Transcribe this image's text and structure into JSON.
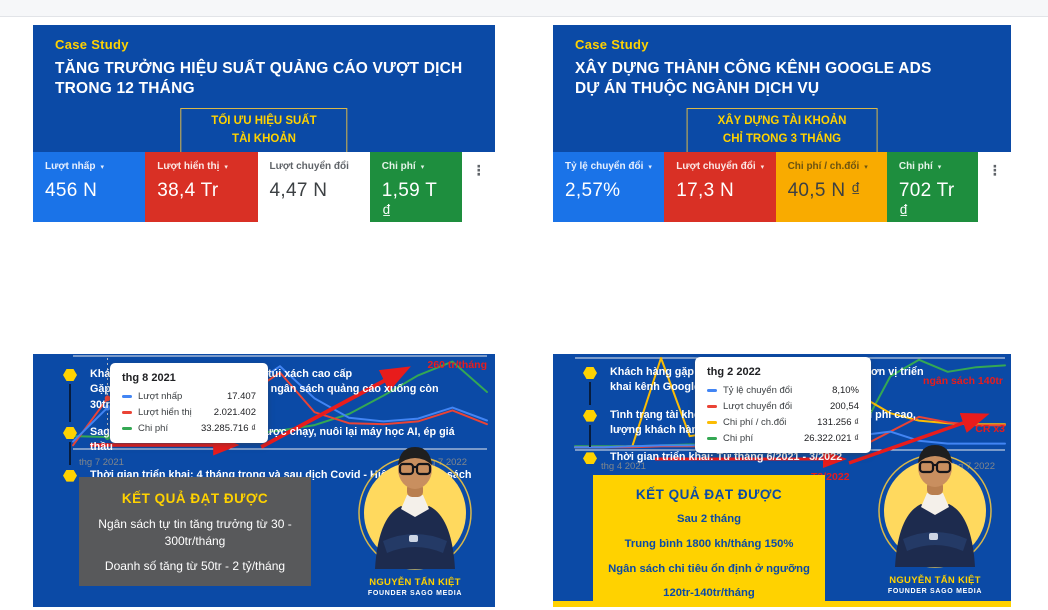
{
  "theme": {
    "card_blue": "#0b4aa6",
    "accent_yellow": "#ffd200",
    "annotation_red": "#e81c1c",
    "result_gray": "#58595b",
    "kebab_icon": "⋮",
    "dropdown_icon": "▾"
  },
  "cards": [
    {
      "kicker": "Case Study",
      "title_line1": "TĂNG TRƯỞNG HIỆU SUẤT QUẢNG CÁO VƯỢT DỊCH",
      "title_line2": "TRONG 12 THÁNG",
      "badge_line1": "TỐI ƯU HIỆU SUẤT",
      "badge_line2": "TÀI KHOẢN",
      "metrics": [
        {
          "label": "Lượt nhấp",
          "value": "456 N",
          "bg": "#1a73e8",
          "label_color": "#e8f0fe",
          "value_color": "#ffffff"
        },
        {
          "label": "Lượt hiển thị",
          "value": "38,4 Tr",
          "bg": "#d93025",
          "label_color": "#fce8e6",
          "value_color": "#ffffff"
        },
        {
          "label": "Lượt chuyển đổi",
          "value": "4,47 N",
          "bg": "#ffffff",
          "label_color": "#5f6368",
          "value_color": "#3c4043"
        },
        {
          "label": "Chi phí",
          "value": "1,59 T ₫",
          "bg": "#1e8e3e",
          "label_color": "#e6f4ea",
          "value_color": "#ffffff"
        }
      ],
      "xaxis_left": "thg 7 2021",
      "xaxis_right": "thg 7 2022",
      "annotation_growth": "260 tr/tháng",
      "bullets": [
        "Khách hàng ngành thời trang vali, túi xách cao cấp\nGặp vấn đề không hiệu suất và cắt ngân sách quảng cáo xuống còn 30tr/tháng",
        "Sago Media xây lại toàn bộ chiến lược chạy, nuôi lại máy học AI, ép giá thầu",
        "Thời gian triển khai: 4 tháng trong và sau dịch Covid - Hiện nay ngân sách đã tăng trưởng ổn định"
      ],
      "results": {
        "title": "KẾT QUẢ ĐẠT ĐƯỢC",
        "lines": [
          "Ngân sách tự tin tăng trưởng từ 30 - 300tr/tháng",
          "Doanh số tăng từ 50tr - 2 tỷ/tháng"
        ]
      },
      "person": {
        "name": "NGUYỄN TẤN KIỆT",
        "role": "FOUNDER SAGO MEDIA"
      }
    },
    {
      "kicker": "Case Study",
      "title_line1": "XÂY DỰNG THÀNH CÔNG KÊNH GOOGLE ADS",
      "title_line2": "DỰ ÁN THUỘC NGÀNH DỊCH VỤ",
      "badge_line1": "XÂY DỰNG TÀI KHOẢN",
      "badge_line2": "CHỈ TRONG 3 THÁNG",
      "metrics": [
        {
          "label": "Tỷ lệ chuyển đổi",
          "value": "2,57%",
          "bg": "#1a73e8",
          "label_color": "#e8f0fe",
          "value_color": "#ffffff"
        },
        {
          "label": "Lượt chuyển đổi",
          "value": "17,3 N",
          "bg": "#d93025",
          "label_color": "#fce8e6",
          "value_color": "#ffffff"
        },
        {
          "label": "Chi phí / ch.đổi",
          "value": "40,5 N ₫",
          "bg": "#f9ab00",
          "label_color": "#6b5311",
          "value_color": "#3c4043"
        },
        {
          "label": "Chi phí",
          "value": "702 Tr ₫",
          "bg": "#1e8e3e",
          "label_color": "#e6f4ea",
          "value_color": "#ffffff"
        }
      ],
      "xaxis_left": "thg 4 2021",
      "xaxis_right": "thg 7 2022",
      "annotation_budget": "ngân sách 140tr",
      "annotation_cr": "CR x3",
      "annotation_t3": "T3/2022",
      "bullets": [
        "Khách hàng gặp tình trạng: tự build và thuê 1 vài đơn vị triển khai kênh Google Ads",
        "Tình trạng tài khoản không ổn định, chuyển đổi chi phí cao, lượng khách hàng mới chỉ 300-500 kh/tháng",
        "Thời gian triển khai: Từ tháng 6/2021 - 3/2022"
      ],
      "results": {
        "title": "KẾT QUẢ ĐẠT ĐƯỢC",
        "lines": [
          "Sau 2 tháng",
          "Trung bình 1800 kh/tháng 150%",
          "Ngân sách chi tiêu ổn định ở ngưỡng",
          "120tr-140tr/tháng"
        ]
      },
      "person": {
        "name": "NGUYỄN TẤN KIỆT",
        "role": "FOUNDER SAGO MEDIA"
      }
    }
  ],
  "chart_data": [
    {
      "type": "line",
      "x_range": [
        "thg 7 2021",
        "thg 7 2022"
      ],
      "ylim": [
        0,
        100
      ],
      "grid": "horizontal",
      "legend_position": "tooltip",
      "series": [
        {
          "name": "Lượt nhấp",
          "color": "#4285f4",
          "values_norm": [
            8,
            45,
            50,
            52,
            55,
            65,
            90,
            55,
            34,
            30,
            33,
            45,
            31
          ]
        },
        {
          "name": "Lượt hiển thị",
          "color": "#ea4335",
          "values_norm": [
            4,
            55,
            57,
            56,
            55,
            58,
            83,
            40,
            28,
            27,
            30,
            42,
            27
          ]
        },
        {
          "name": "Chi phí",
          "color": "#34a853",
          "values_norm": [
            14,
            13,
            13,
            15,
            18,
            16,
            20,
            26,
            38,
            58,
            80,
            95,
            62
          ]
        }
      ],
      "tooltip": {
        "date": "thg 8 2021",
        "index": 1,
        "rows": [
          {
            "name": "Lượt nhấp",
            "value": "17.407"
          },
          {
            "name": "Lượt hiển thị",
            "value": "2.021.402"
          },
          {
            "name": "Chi phí",
            "value": "33.285.716 ₫"
          }
        ]
      },
      "annotations": [
        "260 tr/tháng"
      ]
    },
    {
      "type": "line",
      "x_range": [
        "thg 4 2021",
        "thg 7 2022"
      ],
      "ylim": [
        0,
        100
      ],
      "grid": "horizontal",
      "legend_position": "tooltip",
      "series": [
        {
          "name": "Tỷ lệ chuyển đổi",
          "color": "#4285f4",
          "values_norm": [
            3,
            3,
            4,
            5,
            5,
            6,
            7,
            8,
            9,
            10,
            16,
            20,
            10,
            7,
            7,
            7
          ]
        },
        {
          "name": "Lượt chuyển đổi",
          "color": "#ea4335",
          "values_norm": [
            3,
            3,
            3,
            4,
            4,
            4,
            5,
            5,
            6,
            5,
            4,
            20,
            36,
            30,
            27,
            27
          ]
        },
        {
          "name": "Chi phí / ch.đổi",
          "color": "#fbbc04",
          "values_norm": [
            3,
            3,
            4,
            100,
            15,
            20,
            14,
            16,
            12,
            14,
            58,
            40,
            32,
            29,
            28,
            28
          ]
        },
        {
          "name": "Chi phí",
          "color": "#34a853",
          "values_norm": [
            4,
            4,
            4,
            5,
            6,
            6,
            7,
            7,
            8,
            10,
            22,
            80,
            98,
            85,
            90,
            92
          ]
        }
      ],
      "tooltip": {
        "date": "thg 2 2022",
        "index": 10,
        "rows": [
          {
            "name": "Tỷ lệ chuyển đổi",
            "value": "8,10%"
          },
          {
            "name": "Lượt chuyển đổi",
            "value": "200,54"
          },
          {
            "name": "Chi phí / ch.đổi",
            "value": "131.256 ₫"
          },
          {
            "name": "Chi phí",
            "value": "26.322.021 ₫"
          }
        ]
      },
      "annotations": [
        "ngân sách 140tr",
        "CR x3",
        "T3/2022"
      ]
    }
  ]
}
